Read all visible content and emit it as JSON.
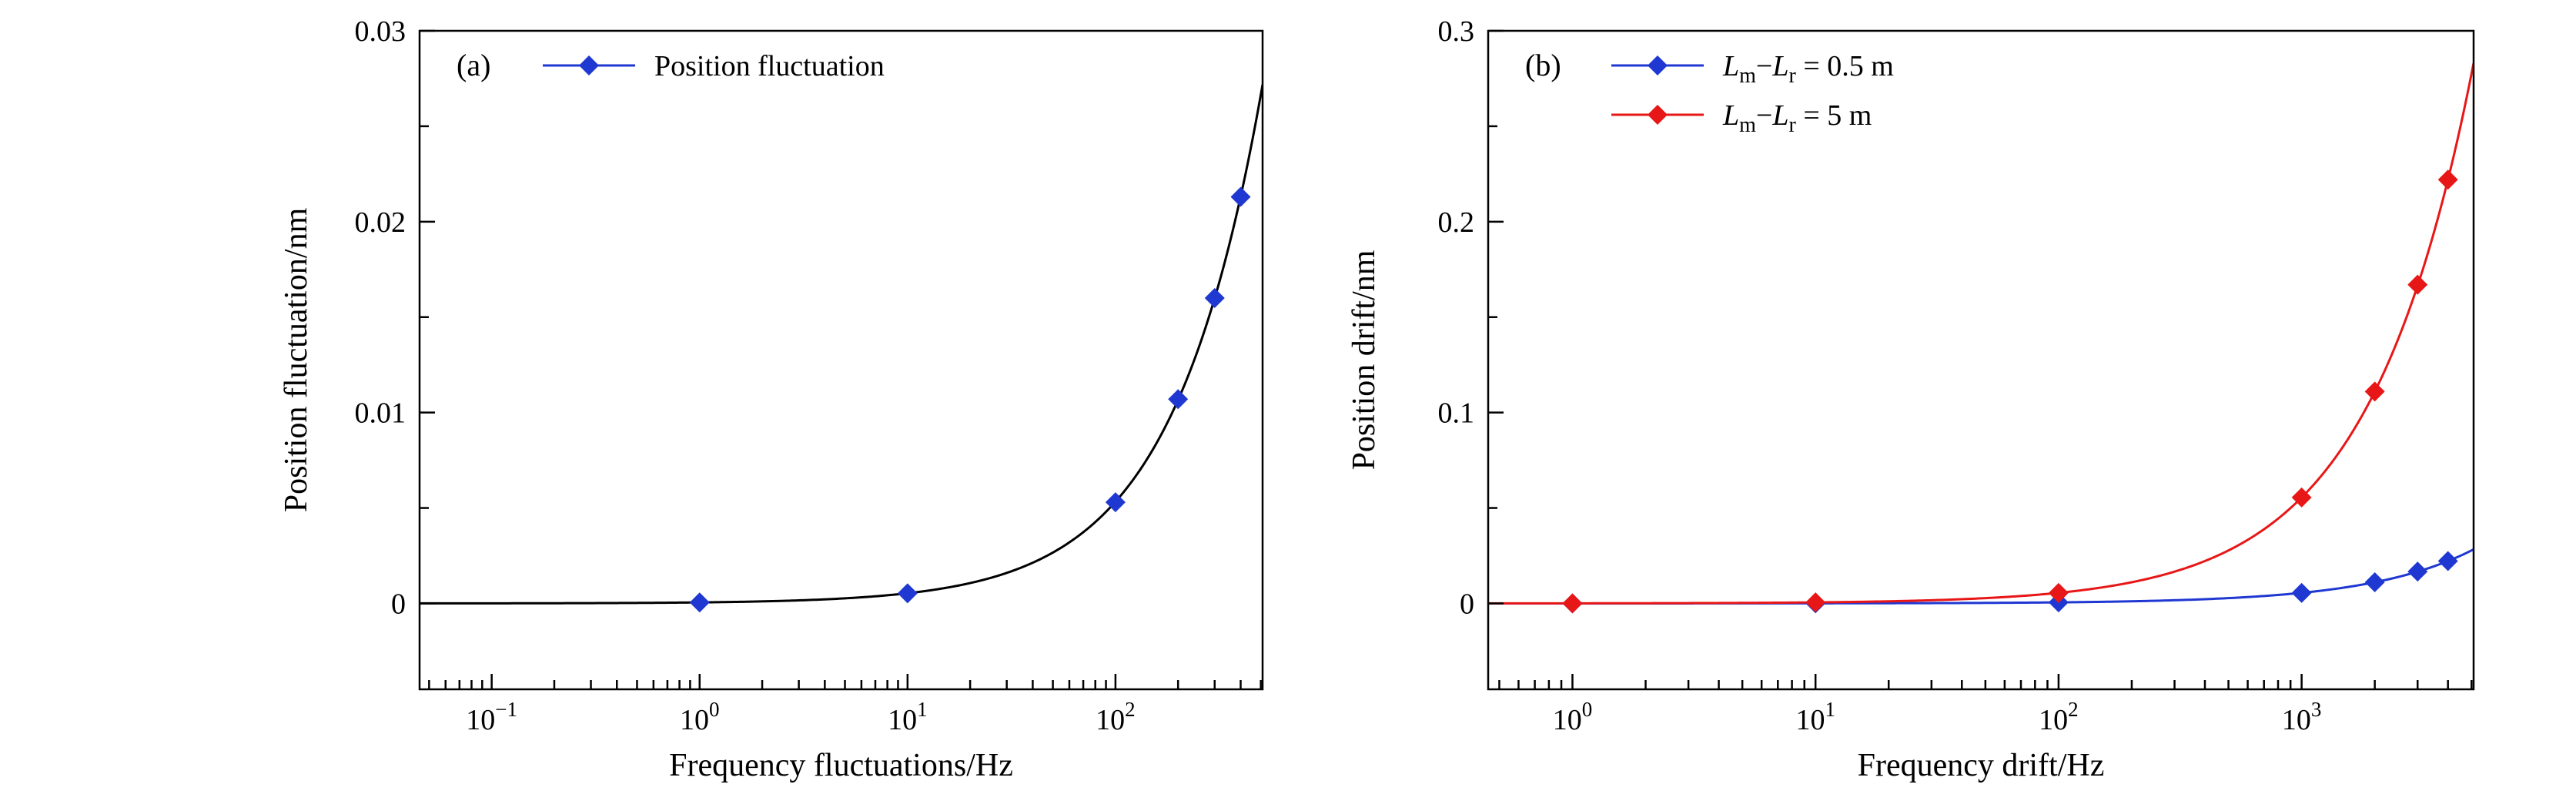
{
  "figure": {
    "background": "#ffffff"
  },
  "chart_data": [
    {
      "id": "a",
      "type": "line",
      "panel_label": "(a)",
      "title": "",
      "xlabel": "Frequency fluctuations/Hz",
      "ylabel": "Position fluctuation/nm",
      "xscale": "log",
      "yscale": "linear",
      "xlim": [
        0.045,
        510
      ],
      "ylim": [
        -0.0045,
        0.03
      ],
      "xticks": {
        "major_exponents": [
          -1,
          0,
          1,
          2
        ]
      },
      "yticks": {
        "major": [
          0,
          0.01,
          0.02,
          0.03
        ],
        "labels": [
          "0",
          "0.01",
          "0.02",
          "0.03"
        ],
        "minor_step": 0.005
      },
      "grid": false,
      "axis_color": "#000000",
      "legend_position": "top-left-inside",
      "series": [
        {
          "name": "Position fluctuation",
          "label_parts": [
            {
              "t": "Position fluctuation"
            }
          ],
          "marker": "diamond",
          "marker_color": "#2038d2",
          "line_color": "#000000",
          "x": [
            1,
            10,
            100,
            200,
            300,
            400
          ],
          "y": [
            5e-05,
            0.00053,
            0.0053,
            0.0107,
            0.016,
            0.0213
          ],
          "fit": {
            "type": "linear",
            "slope": 5.33e-05,
            "intercept": 0
          }
        }
      ]
    },
    {
      "id": "b",
      "type": "line",
      "panel_label": "(b)",
      "title": "",
      "xlabel": "Frequency drift/Hz",
      "ylabel": "Position drift/nm",
      "xscale": "log",
      "yscale": "linear",
      "xlim": [
        0.45,
        5100
      ],
      "ylim": [
        -0.045,
        0.3
      ],
      "xticks": {
        "major_exponents": [
          0,
          1,
          2,
          3
        ]
      },
      "yticks": {
        "major": [
          0,
          0.1,
          0.2,
          0.3
        ],
        "labels": [
          "0",
          "0.1",
          "0.2",
          "0.3"
        ],
        "minor_step": 0.05
      },
      "grid": false,
      "axis_color": "#000000",
      "legend_position": "top-left-inside",
      "series": [
        {
          "name": "Lm − Lr = 0.5 m",
          "label_parts": [
            {
              "t": "L",
              "i": true
            },
            {
              "t": "m",
              "s": true
            },
            {
              "t": "−"
            },
            {
              "t": "L",
              "i": true
            },
            {
              "t": "r",
              "s": true
            },
            {
              "t": " = 0.5 m"
            }
          ],
          "marker": "diamond",
          "marker_color": "#2038d2",
          "line_color": "#2038d2",
          "x": [
            1,
            10,
            100,
            1000,
            2000,
            3000,
            4000
          ],
          "y": [
            5.5e-06,
            5.5e-05,
            0.00055,
            0.0055,
            0.0111,
            0.0167,
            0.0222
          ],
          "fit": {
            "type": "linear",
            "slope": 5.55e-06,
            "intercept": 0
          }
        },
        {
          "name": "Lm − Lr = 5 m",
          "label_parts": [
            {
              "t": "L",
              "i": true
            },
            {
              "t": "m",
              "s": true
            },
            {
              "t": "−"
            },
            {
              "t": "L",
              "i": true
            },
            {
              "t": "r",
              "s": true
            },
            {
              "t": " = 5 m"
            }
          ],
          "marker": "diamond",
          "marker_color": "#e81717",
          "line_color": "#e81717",
          "x": [
            1,
            10,
            100,
            1000,
            2000,
            3000,
            4000
          ],
          "y": [
            5.5e-05,
            0.00055,
            0.0055,
            0.0555,
            0.111,
            0.167,
            0.222
          ],
          "fit": {
            "type": "linear",
            "slope": 5.55e-05,
            "intercept": 0
          }
        }
      ]
    }
  ]
}
